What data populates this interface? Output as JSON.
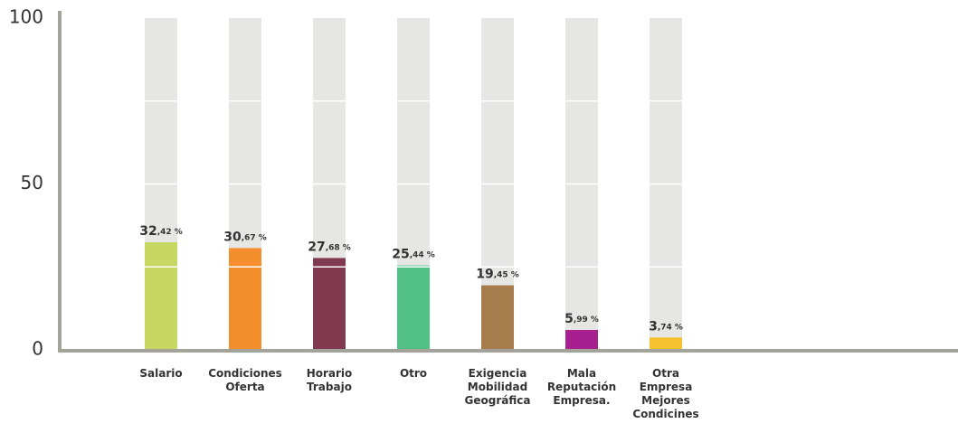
{
  "chart_data": {
    "type": "bar",
    "categories": [
      "Salario",
      "Condiciones Oferta",
      "Horario Trabajo",
      "Otro",
      "Exigencia Mobilidad Geográfica",
      "Mala Reputación Empresa.",
      "Otra Empresa Mejores Condicines"
    ],
    "values": [
      32.42,
      30.67,
      27.68,
      25.44,
      19.45,
      5.99,
      3.74
    ],
    "value_labels": [
      "32,42 %",
      "30,67 %",
      "27,68 %",
      "25,44 %",
      "19,45 %",
      "5,99 %",
      "3,74 %"
    ],
    "colors": [
      "#c6d862",
      "#f58f2e",
      "#7f3a4f",
      "#52bf85",
      "#a67c4c",
      "#a8208f",
      "#f5c12f"
    ],
    "background_bars": true,
    "ylim": [
      0,
      100
    ],
    "yticks": [
      0,
      50,
      100
    ],
    "ygrid": [
      25,
      50,
      75
    ]
  }
}
